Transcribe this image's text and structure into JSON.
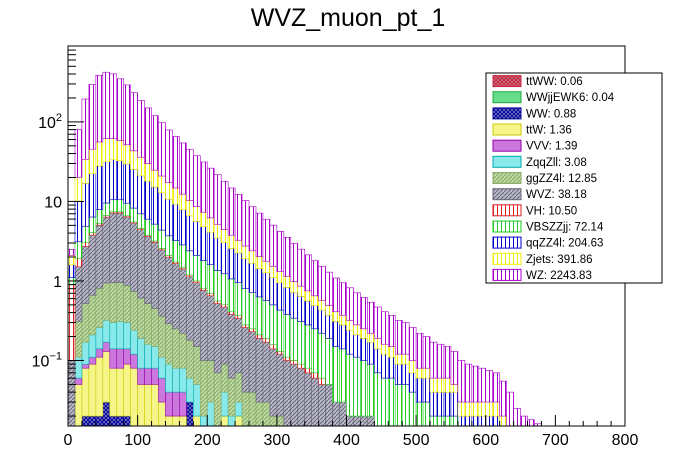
{
  "chart_data": {
    "type": "bar",
    "stacked": true,
    "title": "WVZ_muon_pt_1",
    "xlabel": "",
    "ylabel": "",
    "xlim": [
      0,
      800
    ],
    "ylim": [
      0.015,
      900
    ],
    "yscale": "log",
    "bin_width": 10,
    "x_ticks": [
      0,
      100,
      200,
      300,
      400,
      500,
      600,
      700,
      800
    ],
    "x_tick_labels": [
      "0",
      "100",
      "200",
      "300",
      "400",
      "500",
      "600",
      "700",
      "800"
    ],
    "y_ticks": [
      0.1,
      1,
      10,
      100
    ],
    "y_tick_labels": [
      {
        "base": "10",
        "exp": "−1"
      },
      {
        "base": "1",
        "exp": ""
      },
      {
        "base": "10",
        "exp": ""
      },
      {
        "base": "10",
        "exp": "2"
      }
    ],
    "legend_position": "top-right",
    "legend": [
      {
        "label": "ttWW: 0.06",
        "fill": "#c08080",
        "pattern": "crosshatch",
        "stroke": "#cc2244"
      },
      {
        "label": "WWjjEWK6: 0.04",
        "fill": "#66dd88",
        "pattern": "solid",
        "stroke": "#22aa44"
      },
      {
        "label": "WW: 0.88",
        "fill": "#8888cc",
        "pattern": "crosshatch",
        "stroke": "#000099"
      },
      {
        "label": "ttW: 1.36",
        "fill": "#f5f58a",
        "pattern": "solid",
        "stroke": "#cccc00"
      },
      {
        "label": "VVV: 1.39",
        "fill": "#cc77dd",
        "pattern": "solid",
        "stroke": "#9900aa"
      },
      {
        "label": "ZqqZll: 3.08",
        "fill": "#88e8ea",
        "pattern": "solid",
        "stroke": "#00aaaa"
      },
      {
        "label": "ggZZ4l: 12.85",
        "fill": "#bcd9a2",
        "pattern": "diagonal",
        "stroke": "#88aa66"
      },
      {
        "label": "WVZ: 38.18",
        "fill": "#b8b8c8",
        "pattern": "diagonal",
        "stroke": "#666677"
      },
      {
        "label": "VH: 10.50",
        "fill": "#ffffff",
        "pattern": "vertical",
        "stroke": "#dd2222"
      },
      {
        "label": "VBSZZjj: 72.14",
        "fill": "#ffffff",
        "pattern": "vertical",
        "stroke": "#22cc22"
      },
      {
        "label": "qqZZ4l: 204.63",
        "fill": "#ffffff",
        "pattern": "vertical",
        "stroke": "#0000cc"
      },
      {
        "label": "Zjets: 391.86",
        "fill": "#ffffff",
        "pattern": "vertical",
        "stroke": "#eeee00"
      },
      {
        "label": "WZ: 2243.83",
        "fill": "#ffffff",
        "pattern": "vertical",
        "stroke": "#aa00cc"
      }
    ],
    "stack_order": [
      "ttWW",
      "WWjjEWK6",
      "WW",
      "ttW",
      "VVV",
      "ZqqZll",
      "ggZZ4l",
      "WVZ",
      "VH",
      "VBSZZjj",
      "qqZZ4l",
      "Zjets",
      "WZ"
    ],
    "series": [
      {
        "name": "ttWW",
        "values": [
          0,
          0,
          0,
          0,
          0,
          0,
          0,
          0,
          0,
          0,
          0,
          0,
          0,
          0,
          0,
          0,
          0,
          0,
          0,
          0,
          0,
          0,
          0,
          0,
          0,
          0,
          0,
          0,
          0,
          0,
          0,
          0,
          0,
          0,
          0,
          0,
          0,
          0,
          0,
          0,
          0,
          0,
          0,
          0,
          0,
          0,
          0,
          0,
          0,
          0,
          0,
          0,
          0,
          0,
          0,
          0,
          0,
          0,
          0,
          0,
          0,
          0,
          0,
          0,
          0,
          0,
          0,
          0,
          0,
          0,
          0,
          0,
          0,
          0,
          0,
          0,
          0,
          0,
          0,
          0
        ]
      },
      {
        "name": "WWjjEWK6",
        "values": [
          0,
          0.01,
          0.01,
          0.01,
          0,
          0.01,
          0,
          0,
          0,
          0,
          0,
          0,
          0,
          0,
          0,
          0,
          0,
          0,
          0,
          0,
          0,
          0,
          0,
          0,
          0,
          0,
          0,
          0,
          0,
          0,
          0,
          0,
          0,
          0,
          0,
          0,
          0,
          0,
          0,
          0,
          0,
          0,
          0,
          0,
          0,
          0,
          0,
          0,
          0,
          0,
          0,
          0,
          0,
          0,
          0,
          0,
          0,
          0,
          0,
          0,
          0,
          0,
          0,
          0,
          0,
          0,
          0,
          0,
          0,
          0,
          0,
          0,
          0,
          0,
          0,
          0,
          0,
          0,
          0,
          0
        ]
      },
      {
        "name": "WW",
        "values": [
          0,
          0,
          0.01,
          0.01,
          0.02,
          0.02,
          0.02,
          0.02,
          0.02,
          0.01,
          0.01,
          0.01,
          0.01,
          0,
          0,
          0,
          0,
          0.03,
          0,
          0,
          0,
          0,
          0,
          0,
          0,
          0,
          0,
          0,
          0,
          0,
          0,
          0,
          0,
          0,
          0,
          0,
          0,
          0,
          0,
          0,
          0,
          0,
          0,
          0,
          0,
          0,
          0,
          0,
          0,
          0,
          0,
          0,
          0,
          0,
          0,
          0,
          0,
          0,
          0,
          0,
          0,
          0,
          0,
          0,
          0,
          0,
          0,
          0,
          0,
          0,
          0,
          0,
          0,
          0,
          0,
          0,
          0,
          0,
          0,
          0
        ]
      },
      {
        "name": "ttW",
        "values": [
          0,
          0.04,
          0.06,
          0.07,
          0.09,
          0.1,
          0.06,
          0.06,
          0.07,
          0.07,
          0.04,
          0.04,
          0.04,
          0.03,
          0.02,
          0.02,
          0.02,
          0,
          0.02,
          0,
          0.01,
          0,
          0.02,
          0,
          0.02,
          0,
          0,
          0,
          0,
          0,
          0,
          0,
          0,
          0,
          0,
          0,
          0,
          0,
          0,
          0,
          0,
          0,
          0,
          0,
          0,
          0,
          0,
          0,
          0,
          0,
          0,
          0,
          0,
          0,
          0,
          0,
          0,
          0,
          0,
          0,
          0,
          0,
          0,
          0,
          0,
          0,
          0,
          0,
          0,
          0,
          0,
          0,
          0,
          0,
          0,
          0,
          0,
          0,
          0,
          0
        ]
      },
      {
        "name": "VVV",
        "values": [
          0,
          0.01,
          0.01,
          0.02,
          0.03,
          0.04,
          0.06,
          0.06,
          0.05,
          0.04,
          0.03,
          0.03,
          0.03,
          0.03,
          0.02,
          0.02,
          0.02,
          0,
          0,
          0,
          0,
          0,
          0,
          0,
          0,
          0,
          0,
          0,
          0,
          0,
          0,
          0,
          0,
          0,
          0,
          0,
          0,
          0,
          0,
          0,
          0,
          0,
          0,
          0,
          0,
          0,
          0,
          0,
          0,
          0,
          0,
          0,
          0,
          0,
          0,
          0,
          0,
          0,
          0,
          0,
          0,
          0,
          0,
          0,
          0,
          0,
          0,
          0,
          0,
          0,
          0,
          0,
          0,
          0,
          0,
          0,
          0,
          0,
          0,
          0
        ]
      },
      {
        "name": "ZqqZll",
        "values": [
          0,
          0.05,
          0.08,
          0.1,
          0.12,
          0.15,
          0.16,
          0.17,
          0.16,
          0.12,
          0.11,
          0.08,
          0.07,
          0.05,
          0.05,
          0.04,
          0.04,
          0.03,
          0.03,
          0.02,
          0.02,
          0.01,
          0.02,
          0.02,
          0.01,
          0.01,
          0.01,
          0.01,
          0.01,
          0,
          0,
          0,
          0,
          0,
          0,
          0,
          0,
          0,
          0,
          0,
          0,
          0,
          0,
          0,
          0,
          0,
          0,
          0,
          0,
          0,
          0,
          0,
          0,
          0,
          0,
          0,
          0,
          0,
          0,
          0,
          0,
          0,
          0,
          0,
          0,
          0,
          0,
          0,
          0,
          0,
          0,
          0,
          0,
          0,
          0,
          0,
          0,
          0,
          0,
          0
        ]
      },
      {
        "name": "ggZZ4l",
        "values": [
          0,
          0.2,
          0.35,
          0.45,
          0.55,
          0.62,
          0.65,
          0.64,
          0.58,
          0.5,
          0.42,
          0.36,
          0.3,
          0.25,
          0.2,
          0.17,
          0.14,
          0.12,
          0.1,
          0.08,
          0.07,
          0.06,
          0.05,
          0.04,
          0.04,
          0.03,
          0.03,
          0.02,
          0.02,
          0.02,
          0.02,
          0.01,
          0.01,
          0.01,
          0.01,
          0.01,
          0.01,
          0.01,
          0,
          0,
          0,
          0,
          0,
          0,
          0,
          0,
          0,
          0,
          0,
          0,
          0,
          0,
          0,
          0,
          0,
          0,
          0,
          0,
          0,
          0,
          0,
          0,
          0,
          0,
          0,
          0,
          0,
          0,
          0,
          0,
          0,
          0,
          0,
          0,
          0,
          0,
          0,
          0,
          0,
          0
        ]
      },
      {
        "name": "WVZ",
        "values": [
          0.1,
          1.2,
          2.2,
          3.1,
          4.2,
          5.4,
          6.2,
          6.2,
          5.5,
          4.6,
          3.8,
          3.1,
          2.6,
          2.1,
          1.7,
          1.4,
          1.2,
          0.95,
          0.8,
          0.66,
          0.55,
          0.45,
          0.38,
          0.32,
          0.27,
          0.22,
          0.19,
          0.16,
          0.14,
          0.12,
          0.1,
          0.09,
          0.08,
          0.07,
          0.06,
          0.05,
          0.04,
          0.04,
          0.03,
          0.03,
          0.02,
          0.02,
          0.02,
          0.02,
          0.01,
          0.01,
          0.01,
          0.01,
          0.01,
          0.01,
          0,
          0,
          0,
          0,
          0,
          0,
          0,
          0,
          0,
          0,
          0,
          0,
          0,
          0,
          0,
          0,
          0,
          0,
          0,
          0,
          0,
          0,
          0,
          0,
          0,
          0,
          0,
          0,
          0,
          0
        ]
      },
      {
        "name": "VH",
        "values": [
          0.8,
          0.4,
          0.35,
          0.3,
          0.3,
          0.3,
          0.25,
          0.25,
          0.22,
          0.2,
          0.18,
          0.15,
          0.13,
          0.1,
          0.1,
          0.08,
          0.07,
          0.06,
          0.05,
          0.05,
          0.05,
          0.04,
          0.04,
          0.03,
          0.03,
          0.02,
          0.02,
          0.02,
          0.02,
          0.02,
          0.01,
          0.01,
          0.01,
          0.01,
          0.01,
          0.01,
          0.01,
          0,
          0,
          0,
          0,
          0,
          0,
          0,
          0,
          0,
          0,
          0,
          0,
          0,
          0,
          0,
          0,
          0,
          0,
          0,
          0,
          0,
          0,
          0,
          0,
          0,
          0,
          0,
          0,
          0,
          0,
          0,
          0,
          0,
          0,
          0,
          0,
          0,
          0,
          0,
          0,
          0,
          0,
          0
        ]
      },
      {
        "name": "VBSZZjj",
        "values": [
          0.2,
          1.2,
          1.8,
          2.3,
          2.6,
          2.9,
          3.1,
          3.1,
          2.9,
          2.7,
          2.4,
          2.2,
          2,
          1.8,
          1.6,
          1.5,
          1.35,
          1.2,
          1.1,
          1,
          0.9,
          0.8,
          0.72,
          0.65,
          0.58,
          0.52,
          0.47,
          0.42,
          0.38,
          0.34,
          0.3,
          0.27,
          0.24,
          0.22,
          0.2,
          0.18,
          0.16,
          0.14,
          0.12,
          0.11,
          0.1,
          0.09,
          0.08,
          0.07,
          0.06,
          0.05,
          0.05,
          0.04,
          0.04,
          0.03,
          0.03,
          0.03,
          0.02,
          0.02,
          0.02,
          0.02,
          0.01,
          0.01,
          0.01,
          0.01,
          0.01,
          0.01,
          0,
          0,
          0,
          0,
          0,
          0,
          0,
          0,
          0,
          0,
          0,
          0,
          0,
          0,
          0,
          0,
          0,
          0
        ]
      },
      {
        "name": "qqZZ4l",
        "values": [
          0.5,
          7,
          12,
          16,
          20,
          22,
          23,
          22,
          20,
          17,
          14,
          12,
          10,
          8.5,
          7,
          6,
          5,
          4.2,
          3.5,
          3,
          2.5,
          2.1,
          1.8,
          1.5,
          1.3,
          1.1,
          0.95,
          0.8,
          0.7,
          0.6,
          0.52,
          0.45,
          0.38,
          0.33,
          0.28,
          0.24,
          0.21,
          0.18,
          0.16,
          0.14,
          0.12,
          0.1,
          0.09,
          0.08,
          0.07,
          0.06,
          0.05,
          0.04,
          0.04,
          0.03,
          0.03,
          0.03,
          0.02,
          0.02,
          0.02,
          0.02,
          0.01,
          0.01,
          0.01,
          0.01,
          0.01,
          0.01,
          0.01,
          0,
          0,
          0,
          0,
          0,
          0,
          0,
          0,
          0,
          0,
          0,
          0,
          0,
          0,
          0,
          0,
          0
        ]
      },
      {
        "name": "Zjets",
        "values": [
          0.5,
          10,
          17,
          23,
          28,
          30,
          28,
          26,
          22,
          18,
          15,
          12,
          9.5,
          8,
          6.5,
          5.5,
          4.5,
          3.7,
          3,
          2.5,
          2.1,
          1.7,
          1.4,
          1.2,
          1,
          0.85,
          0.72,
          0.6,
          0.5,
          0.43,
          0.36,
          0.31,
          0.26,
          0.22,
          0.19,
          0.16,
          0.14,
          0.12,
          0.1,
          0.09,
          0.08,
          0.07,
          0.06,
          0.05,
          0.05,
          0.04,
          0.04,
          0.03,
          0.03,
          0.03,
          0.02,
          0.02,
          0.02,
          0.02,
          0.02,
          0.01,
          0.01,
          0.01,
          0.01,
          0.01,
          0.01,
          0.01,
          0.01,
          0.01,
          0,
          0,
          0,
          0,
          0,
          0,
          0,
          0,
          0,
          0,
          0,
          0,
          0,
          0,
          0,
          0
        ]
      },
      {
        "name": "WZ",
        "values": [
          0.4,
          60,
          160,
          250,
          330,
          360,
          340,
          290,
          240,
          190,
          150,
          120,
          95,
          77,
          62,
          51,
          42,
          35,
          29,
          24,
          20,
          16.5,
          13.5,
          11,
          9,
          7.5,
          6.2,
          5.1,
          4.2,
          3.5,
          2.9,
          2.4,
          2,
          1.65,
          1.38,
          1.15,
          0.96,
          0.8,
          0.68,
          0.58,
          0.5,
          0.43,
          0.37,
          0.32,
          0.28,
          0.25,
          0.22,
          0.2,
          0.18,
          0.16,
          0.14,
          0.12,
          0.11,
          0.1,
          0.09,
          0.08,
          0.07,
          0.06,
          0.055,
          0.05,
          0.045,
          0.04,
          0.035,
          0.03,
          0.025,
          0.02,
          0.018,
          0.016,
          0.014,
          0.012,
          0.01,
          0.01,
          0,
          0,
          0,
          0,
          0,
          0,
          0,
          0
        ]
      }
    ]
  }
}
